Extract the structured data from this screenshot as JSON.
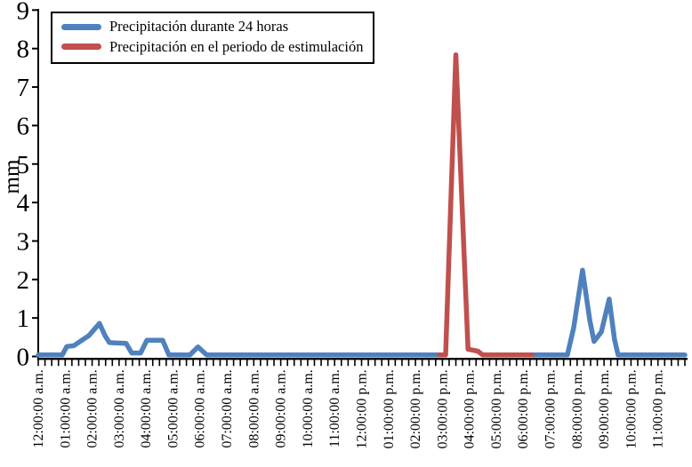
{
  "chart_data": {
    "type": "line",
    "title": "",
    "ylabel": "mm",
    "ylim": [
      0,
      9
    ],
    "yticks": [
      "0",
      "1",
      "2",
      "3",
      "4",
      "5",
      "6",
      "7",
      "8",
      "9"
    ],
    "x_unit": "hours",
    "xlim": [
      0,
      24
    ],
    "x_minor_tick_interval_hours": 0.25,
    "grid": "off",
    "legend_position": "top-left",
    "axis_color": "#000000",
    "background": "#FFFFFF",
    "x_tick_labels": [
      "12:00:00 a.m.",
      "01:00:00 a.m.",
      "02:00:00 a.m.",
      "03:00:00 a.m.",
      "04:00:00 a.m.",
      "05:00:00 a.m.",
      "06:00:00 a.m.",
      "07:00:00 a.m.",
      "08:00:00 a.m.",
      "09:00:00 a.m.",
      "10:00:00 a.m.",
      "11:00:00 a.m.",
      "12:00:00 p.m.",
      "01:00:00 p.m.",
      "02:00:00 p.m.",
      "03:00:00 p.m.",
      "04:00:00 p.m.",
      "05:00:00 p.m.",
      "06:00:00 p.m.",
      "07:00:00 p.m.",
      "08:00:00 p.m.",
      "09:00:00 p.m.",
      "10:00:00 p.m.",
      "11:00:00 p.m."
    ],
    "series": [
      {
        "name": "Precipitación durante 24 horas",
        "color": "#4F81BD",
        "segments": [
          [
            [
              0,
              0
            ],
            [
              0.89,
              0
            ],
            [
              1.06,
              0.22
            ],
            [
              1.32,
              0.24
            ],
            [
              1.55,
              0.35
            ],
            [
              1.88,
              0.5
            ],
            [
              2.27,
              0.82
            ],
            [
              2.48,
              0.5
            ],
            [
              2.64,
              0.32
            ],
            [
              3.26,
              0.3
            ],
            [
              3.47,
              0.05
            ],
            [
              3.8,
              0.05
            ],
            [
              4.03,
              0.38
            ],
            [
              4.62,
              0.38
            ],
            [
              4.85,
              0
            ],
            [
              5.63,
              0
            ],
            [
              5.93,
              0.21
            ],
            [
              6.25,
              0
            ],
            [
              14.89,
              0
            ]
          ],
          [
            [
              18.32,
              0
            ],
            [
              19.64,
              0
            ],
            [
              19.87,
              0.7
            ],
            [
              20.2,
              2.2
            ],
            [
              20.47,
              0.9
            ],
            [
              20.63,
              0.35
            ],
            [
              20.9,
              0.6
            ],
            [
              21.19,
              1.45
            ],
            [
              21.39,
              0.4
            ],
            [
              21.52,
              0
            ],
            [
              24,
              0
            ]
          ]
        ]
      },
      {
        "name": "Precipitación en el periodo de estimulación",
        "color": "#C0504D",
        "segments": [
          [
            [
              14.89,
              0
            ],
            [
              15.12,
              0
            ],
            [
              15.5,
              7.8
            ],
            [
              15.95,
              0.15
            ],
            [
              16.31,
              0.1
            ],
            [
              16.5,
              0
            ],
            [
              18.32,
              0
            ]
          ]
        ]
      }
    ]
  }
}
